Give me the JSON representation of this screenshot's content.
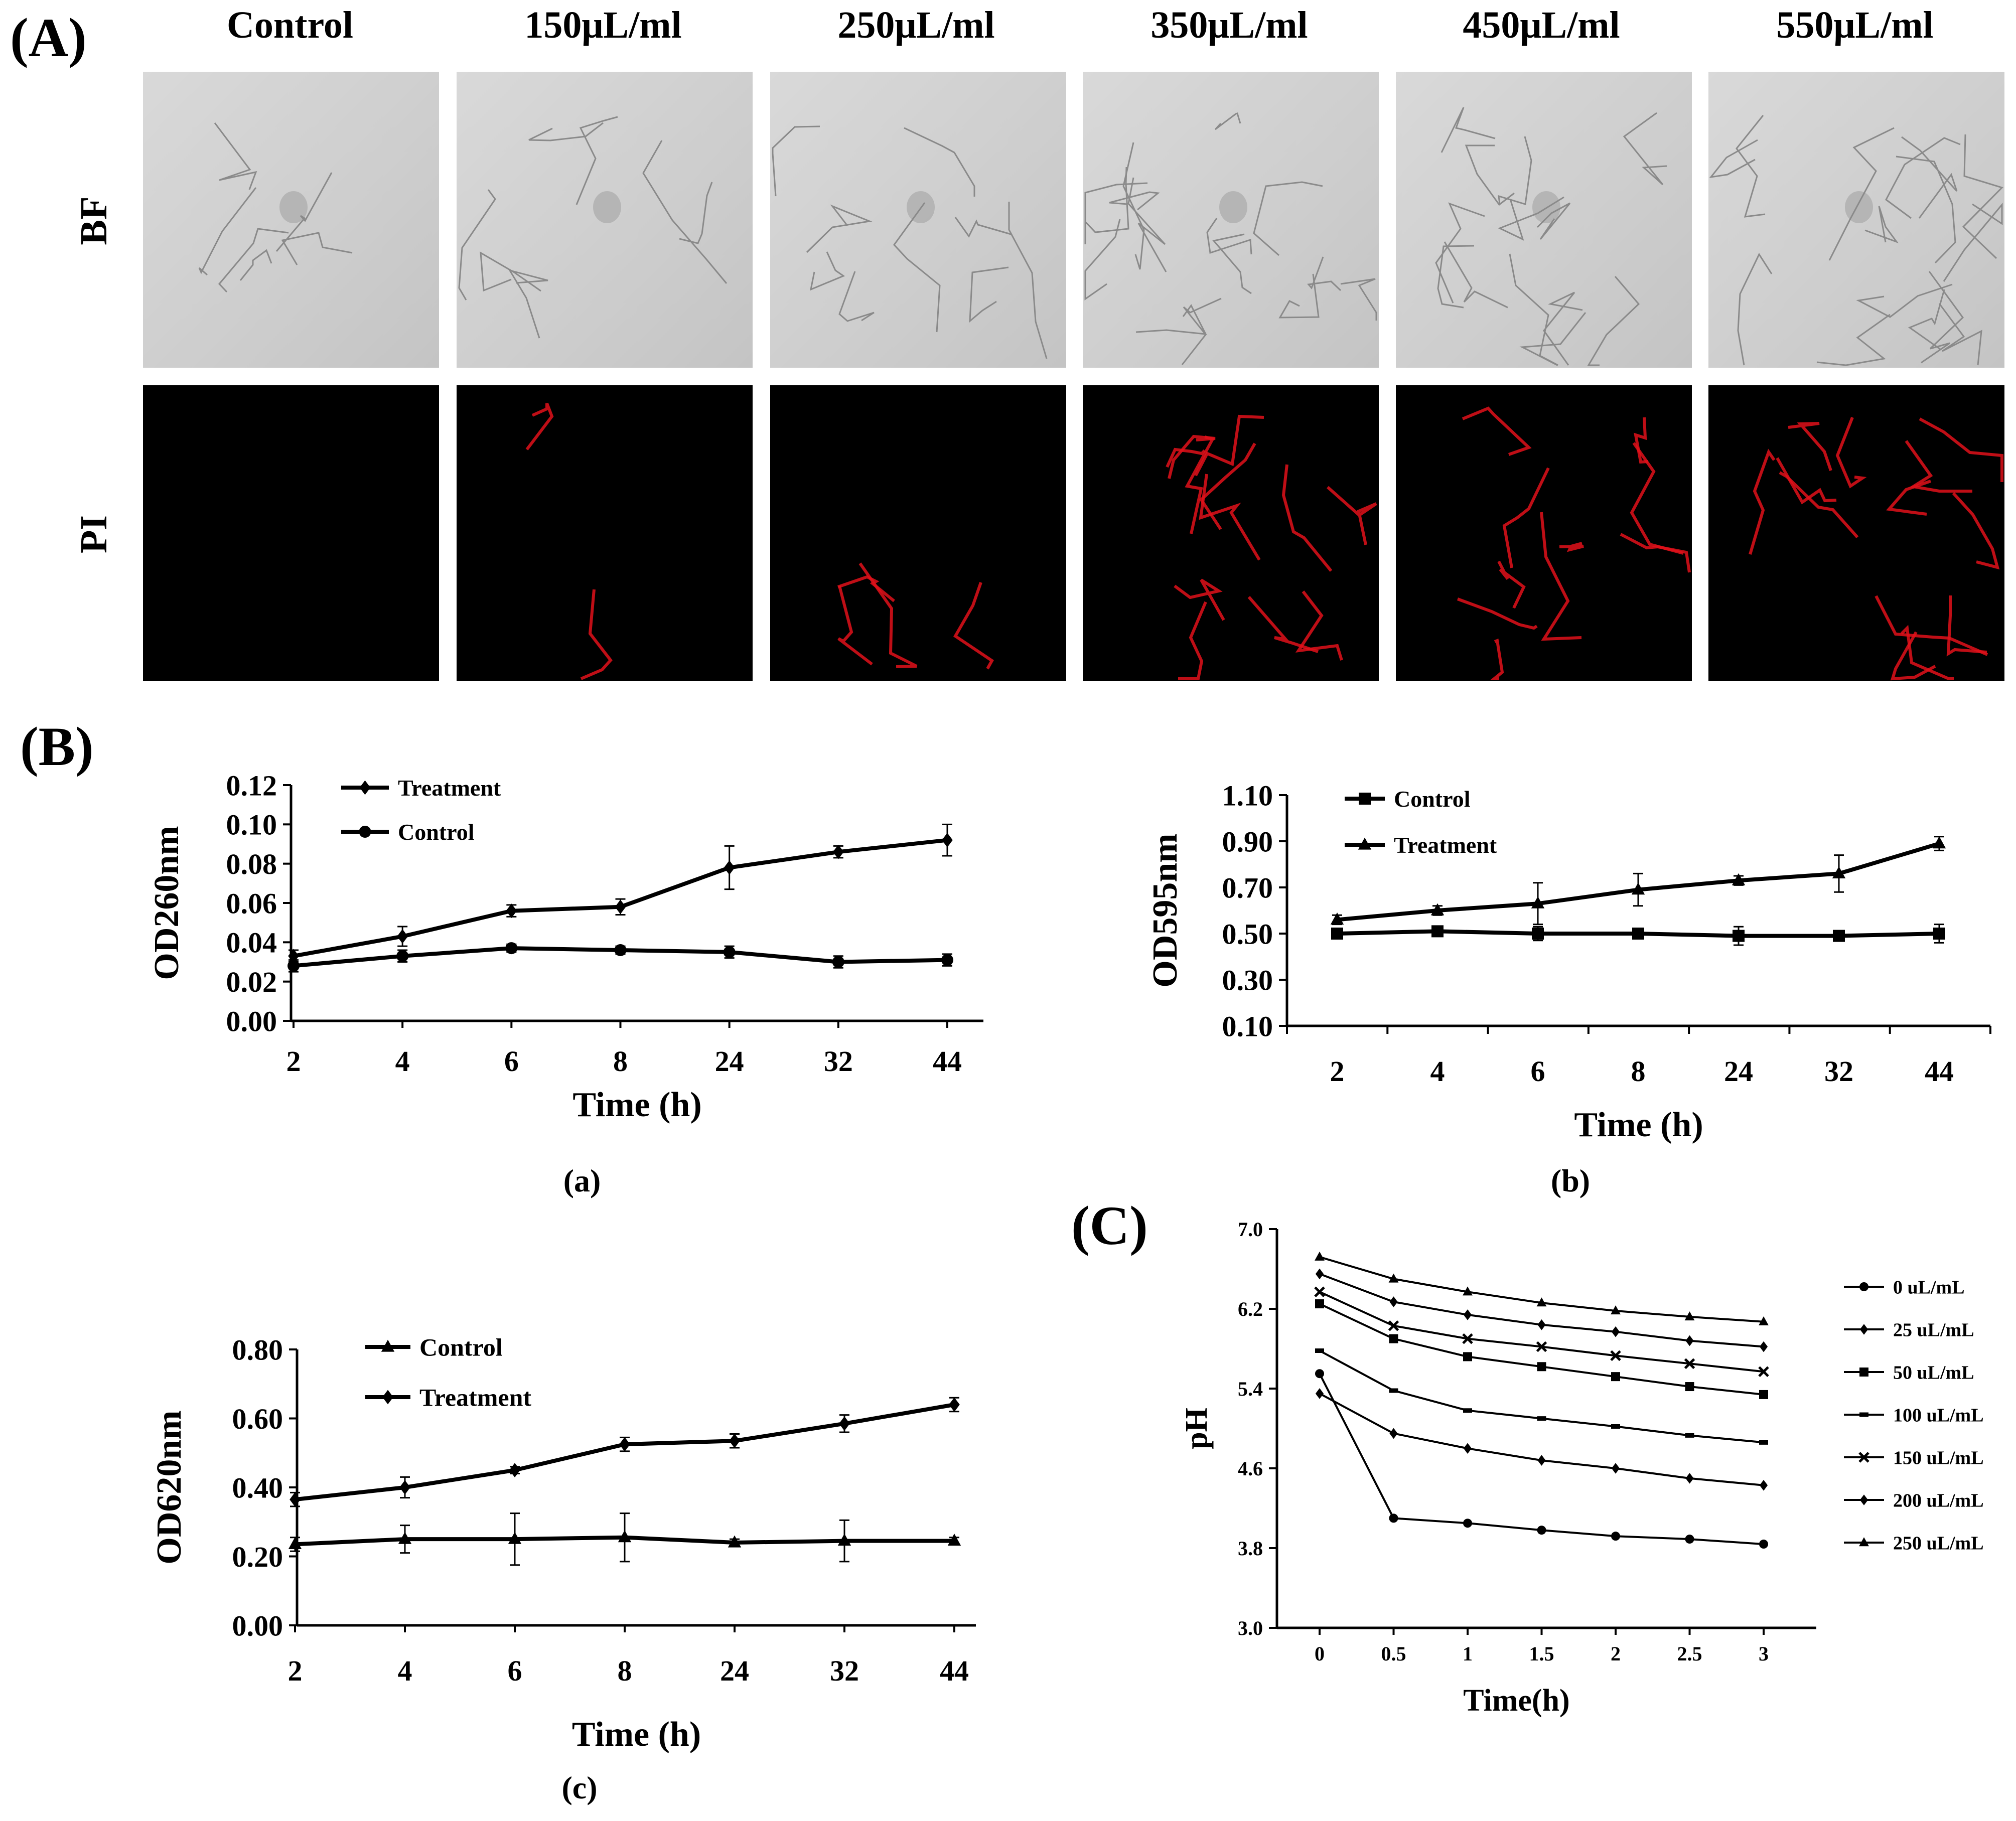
{
  "panel_labels": {
    "A": "(A)",
    "B": "(B)",
    "C": "(C)"
  },
  "micrographs": {
    "columns": [
      "Control",
      "150μL/ml",
      "250μL/ml",
      "350μL/ml",
      "450μL/ml",
      "550μL/ml"
    ],
    "rows": [
      "BF",
      "PI"
    ],
    "pi_signal_level": [
      0.02,
      0.12,
      0.28,
      0.85,
      0.7,
      0.9
    ]
  },
  "chart_data": [
    {
      "id": "a",
      "type": "line",
      "subcaption": "(a)",
      "categories": [
        "2",
        "4",
        "6",
        "8",
        "24",
        "32",
        "44"
      ],
      "xlabel": "Time (h)",
      "ylabel": "OD260nm",
      "ylim": [
        0,
        0.12
      ],
      "yticks": [
        0,
        0.02,
        0.04,
        0.06,
        0.08,
        0.1,
        0.12
      ],
      "ytick_labels": [
        "0.00",
        "0.02",
        "0.04",
        "0.06",
        "0.08",
        "0.10",
        "0.12"
      ],
      "legend_position": "top-left",
      "series": [
        {
          "name": "Treatment",
          "marker": "diamond",
          "values": [
            0.033,
            0.043,
            0.056,
            0.058,
            0.078,
            0.086,
            0.092
          ],
          "errors": [
            0.003,
            0.005,
            0.003,
            0.004,
            0.011,
            0.003,
            0.008
          ]
        },
        {
          "name": "Control",
          "marker": "circle",
          "values": [
            0.028,
            0.033,
            0.037,
            0.036,
            0.035,
            0.03,
            0.031
          ],
          "errors": [
            0.003,
            0.003,
            0.002,
            0.002,
            0.003,
            0.003,
            0.003
          ]
        }
      ]
    },
    {
      "id": "b",
      "type": "line",
      "subcaption": "(b)",
      "categories": [
        "2",
        "4",
        "6",
        "8",
        "24",
        "32",
        "44"
      ],
      "xlabel": "Time (h)",
      "ylabel": "OD595nm",
      "ylim": [
        0.1,
        1.1
      ],
      "yticks": [
        0.1,
        0.3,
        0.5,
        0.7,
        0.9,
        1.1
      ],
      "ytick_labels": [
        "0.10",
        "0.30",
        "0.50",
        "0.70",
        "0.90",
        "1.10"
      ],
      "legend_position": "top-left",
      "series": [
        {
          "name": "Control",
          "marker": "square",
          "values": [
            0.5,
            0.51,
            0.5,
            0.5,
            0.49,
            0.49,
            0.5
          ],
          "errors": [
            0.02,
            0.02,
            0.03,
            0.02,
            0.04,
            0.02,
            0.04
          ]
        },
        {
          "name": "Treatment",
          "marker": "triangle",
          "values": [
            0.56,
            0.6,
            0.63,
            0.69,
            0.73,
            0.76,
            0.89
          ],
          "errors": [
            0.02,
            0.02,
            0.09,
            0.07,
            0.02,
            0.08,
            0.03
          ]
        }
      ]
    },
    {
      "id": "c",
      "type": "line",
      "subcaption": "(c)",
      "categories": [
        "2",
        "4",
        "6",
        "8",
        "24",
        "32",
        "44"
      ],
      "xlabel": "Time (h)",
      "ylabel": "OD620nm",
      "ylim": [
        0,
        0.8
      ],
      "yticks": [
        0,
        0.2,
        0.4,
        0.6,
        0.8
      ],
      "ytick_labels": [
        "0.00",
        "0.20",
        "0.40",
        "0.60",
        "0.80"
      ],
      "legend_position": "top-left",
      "series": [
        {
          "name": "Control",
          "marker": "triangle",
          "values": [
            0.235,
            0.25,
            0.25,
            0.255,
            0.24,
            0.245,
            0.245
          ],
          "errors": [
            0.02,
            0.04,
            0.075,
            0.07,
            0.01,
            0.06,
            0.01
          ]
        },
        {
          "name": "Treatment",
          "marker": "diamond",
          "values": [
            0.365,
            0.4,
            0.45,
            0.525,
            0.535,
            0.585,
            0.64
          ],
          "errors": [
            0.02,
            0.03,
            0.01,
            0.02,
            0.02,
            0.025,
            0.02
          ]
        }
      ]
    },
    {
      "id": "C",
      "type": "line",
      "categories": [
        "0",
        "0.5",
        "1",
        "1.5",
        "2",
        "2.5",
        "3"
      ],
      "xlabel": "Time(h)",
      "ylabel": "pH",
      "ylim": [
        3.0,
        7.0
      ],
      "yticks": [
        3.0,
        3.8,
        4.6,
        5.4,
        6.2,
        7.0
      ],
      "ytick_labels": [
        "3.0",
        "3.8",
        "4.6",
        "5.4",
        "6.2",
        "7.0"
      ],
      "legend_position": "right",
      "series": [
        {
          "name": "0 uL/mL",
          "marker": "circle",
          "values": [
            5.55,
            4.1,
            4.05,
            3.98,
            3.92,
            3.89,
            3.84
          ]
        },
        {
          "name": "25 uL/mL",
          "marker": "diamond",
          "values": [
            5.35,
            4.95,
            4.8,
            4.68,
            4.6,
            4.5,
            4.43
          ]
        },
        {
          "name": "50 uL/mL",
          "marker": "square",
          "values": [
            6.25,
            5.9,
            5.72,
            5.62,
            5.52,
            5.42,
            5.34
          ]
        },
        {
          "name": "100 uL/mL",
          "marker": "asterisk",
          "values": [
            5.78,
            5.38,
            5.18,
            5.1,
            5.02,
            4.93,
            4.86
          ]
        },
        {
          "name": "150 uL/mL",
          "marker": "cross",
          "values": [
            6.37,
            6.03,
            5.9,
            5.82,
            5.73,
            5.65,
            5.57
          ]
        },
        {
          "name": "200 uL/mL",
          "marker": "diamond",
          "values": [
            6.55,
            6.27,
            6.14,
            6.04,
            5.97,
            5.88,
            5.82
          ]
        },
        {
          "name": "250 uL/mL",
          "marker": "triangle",
          "values": [
            6.72,
            6.5,
            6.37,
            6.26,
            6.18,
            6.12,
            6.07
          ]
        }
      ]
    }
  ]
}
